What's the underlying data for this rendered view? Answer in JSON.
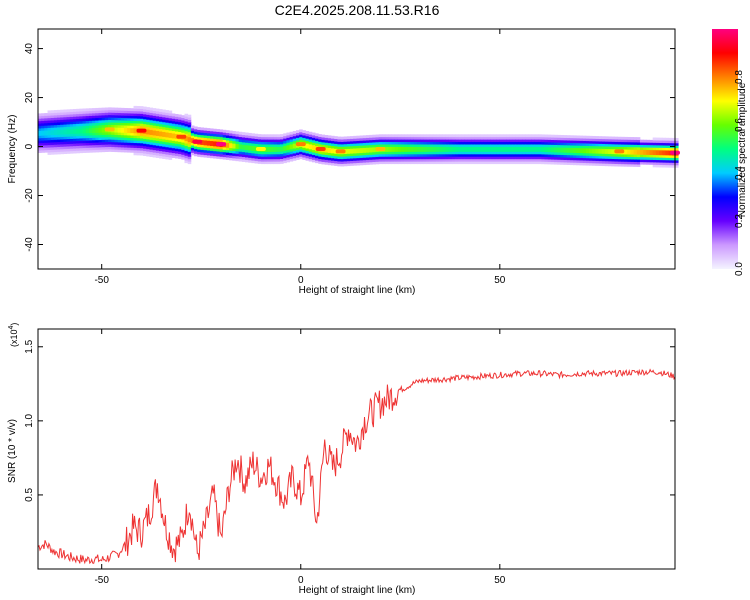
{
  "title": "C2E4.2025.208.11.53.R16",
  "chart_data": [
    {
      "type": "heatmap",
      "xlabel": "Height of straight line (km)",
      "ylabel": "Frequency (Hz)",
      "xlim": [
        -66,
        94
      ],
      "ylim": [
        -50,
        48
      ],
      "xticks": [
        -50,
        0,
        50
      ],
      "yticks": [
        -40,
        -20,
        0,
        20,
        40
      ],
      "colorbar": {
        "label": "Normalized spectral amplitude",
        "range": [
          0,
          1
        ],
        "ticks": [
          0.0,
          0.2,
          0.4,
          0.6,
          0.8
        ],
        "colors": [
          "#f4f4ff",
          "#cc99ff",
          "#6600ff",
          "#0000ff",
          "#00ccff",
          "#00ff80",
          "#66ff00",
          "#ffff00",
          "#ff8000",
          "#ff0000",
          "#ff0080"
        ]
      },
      "ridge": {
        "x": [
          -66,
          -55,
          -48,
          -40,
          -30,
          -26,
          -20,
          -15,
          -10,
          -5,
          0,
          5,
          10,
          20,
          40,
          60,
          80,
          94
        ],
        "y": [
          5.5,
          6.5,
          7,
          6.5,
          4,
          2,
          1,
          0,
          -1,
          -1,
          1,
          -1,
          -2,
          -1,
          -1,
          -1,
          -2,
          -2.5
        ],
        "peak": [
          0.4,
          0.5,
          0.65,
          0.8,
          0.75,
          0.85,
          0.9,
          0.55,
          0.6,
          0.55,
          0.7,
          0.75,
          0.7,
          0.65,
          0.5,
          0.5,
          0.7,
          0.9
        ]
      }
    },
    {
      "type": "line",
      "xlabel": "Height of straight line (km)",
      "ylabel": "SNR (10 * v/v)",
      "scale_label": "(x10",
      "scale_exp": "4",
      "xlim": [
        -66,
        94
      ],
      "ylim": [
        0,
        1.62
      ],
      "xticks": [
        -50,
        0,
        50
      ],
      "yticks": [
        0.5,
        1.0,
        1.5
      ],
      "ytick_labels": [
        "0.5",
        "1.0",
        "1.5"
      ],
      "series": [
        {
          "color": "#ee3333",
          "x": [
            -66,
            -64,
            -62,
            -60,
            -58,
            -56,
            -54,
            -52,
            -50,
            -48,
            -46,
            -44,
            -42,
            -40,
            -38,
            -36,
            -34,
            -32,
            -30,
            -28,
            -26,
            -24,
            -22,
            -20,
            -18,
            -16,
            -14,
            -12,
            -10,
            -8,
            -6,
            -4,
            -2,
            0,
            2,
            4,
            6,
            8,
            10,
            12,
            14,
            16,
            18,
            20,
            22,
            24,
            26,
            28,
            30,
            35,
            40,
            45,
            50,
            55,
            60,
            65,
            70,
            75,
            80,
            85,
            90,
            94
          ],
          "y": [
            0.15,
            0.17,
            0.12,
            0.1,
            0.08,
            0.07,
            0.06,
            0.07,
            0.06,
            0.08,
            0.1,
            0.17,
            0.28,
            0.25,
            0.38,
            0.58,
            0.3,
            0.14,
            0.2,
            0.45,
            0.1,
            0.28,
            0.5,
            0.2,
            0.55,
            0.75,
            0.58,
            0.72,
            0.62,
            0.7,
            0.58,
            0.45,
            0.62,
            0.48,
            0.75,
            0.3,
            0.85,
            0.68,
            0.78,
            0.95,
            0.84,
            1.0,
            1.06,
            1.12,
            1.15,
            1.2,
            1.22,
            1.25,
            1.27,
            1.28,
            1.29,
            1.3,
            1.31,
            1.32,
            1.32,
            1.31,
            1.32,
            1.32,
            1.32,
            1.33,
            1.33,
            1.3
          ]
        }
      ]
    }
  ]
}
